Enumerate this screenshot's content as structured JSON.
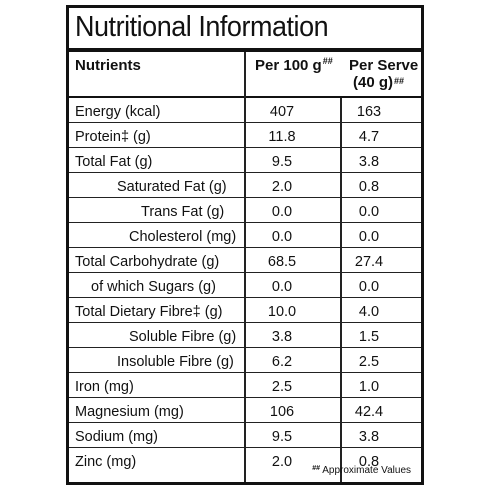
{
  "panel": {
    "title": "Nutritional Information",
    "header": {
      "nutrients": "Nutrients",
      "per100": "Per 100 g",
      "per100_mark": "##",
      "perserve_line1": "Per Serve",
      "perserve_line2": "(40 g)",
      "perserve_mark": "##"
    },
    "rows": [
      {
        "name": "Energy (kcal)",
        "per100": "407",
        "perserve": "163"
      },
      {
        "name": "Protein‡ (g)",
        "per100": "11.8",
        "perserve": "4.7"
      },
      {
        "name": "Total Fat (g)",
        "per100": "9.5",
        "perserve": "3.8"
      },
      {
        "name": "Saturated Fat (g)",
        "per100": "2.0",
        "perserve": "0.8"
      },
      {
        "name": "Trans Fat (g)",
        "per100": "0.0",
        "perserve": "0.0"
      },
      {
        "name": "Cholesterol (mg)",
        "per100": "0.0",
        "perserve": "0.0"
      },
      {
        "name": "Total Carbohydrate (g)",
        "per100": "68.5",
        "perserve": "27.4"
      },
      {
        "name": "of which Sugars (g)",
        "per100": "0.0",
        "perserve": "0.0"
      },
      {
        "name": "Total Dietary Fibre‡ (g)",
        "per100": "10.0",
        "perserve": "4.0"
      },
      {
        "name": "Soluble Fibre (g)",
        "per100": "3.8",
        "perserve": "1.5"
      },
      {
        "name": "Insoluble Fibre (g)",
        "per100": "6.2",
        "perserve": "2.5"
      },
      {
        "name": "Iron (mg)",
        "per100": "2.5",
        "perserve": "1.0"
      },
      {
        "name": "Magnesium (mg)",
        "per100": "106",
        "perserve": "42.4"
      },
      {
        "name": "Sodium (mg)",
        "per100": "9.5",
        "perserve": "3.8"
      },
      {
        "name": "Zinc (mg)",
        "per100": "2.0",
        "perserve": "0.8"
      }
    ],
    "footnote_mark": "##",
    "footnote": "Approximate Values"
  }
}
